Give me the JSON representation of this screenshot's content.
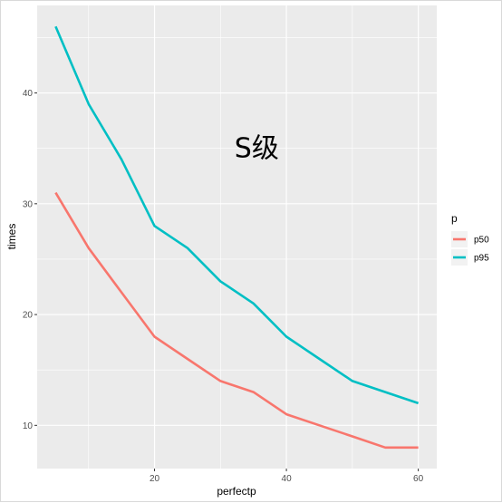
{
  "chart_data": {
    "type": "line",
    "title": "",
    "xlabel": "perfectp",
    "ylabel": "times",
    "x": [
      5,
      10,
      15,
      20,
      25,
      30,
      35,
      40,
      45,
      50,
      55,
      60
    ],
    "xlim": [
      2.2,
      62.8
    ],
    "ylim": [
      6.1,
      47.9
    ],
    "xticks": [
      20,
      40,
      60
    ],
    "yticks": [
      10,
      20,
      30,
      40
    ],
    "grid": true,
    "series": [
      {
        "name": "p50",
        "color": "#F8766D",
        "values": [
          31,
          26,
          22,
          18,
          16,
          14,
          13,
          11,
          10,
          9,
          8,
          8
        ]
      },
      {
        "name": "p95",
        "color": "#00BFC4",
        "values": [
          46,
          39,
          34,
          28,
          26,
          23,
          21,
          18,
          16,
          14,
          13,
          12
        ]
      }
    ],
    "legend": {
      "title": "p",
      "position": "right"
    },
    "annotation": {
      "text": "S级",
      "x": 35.5,
      "y": 35
    }
  }
}
